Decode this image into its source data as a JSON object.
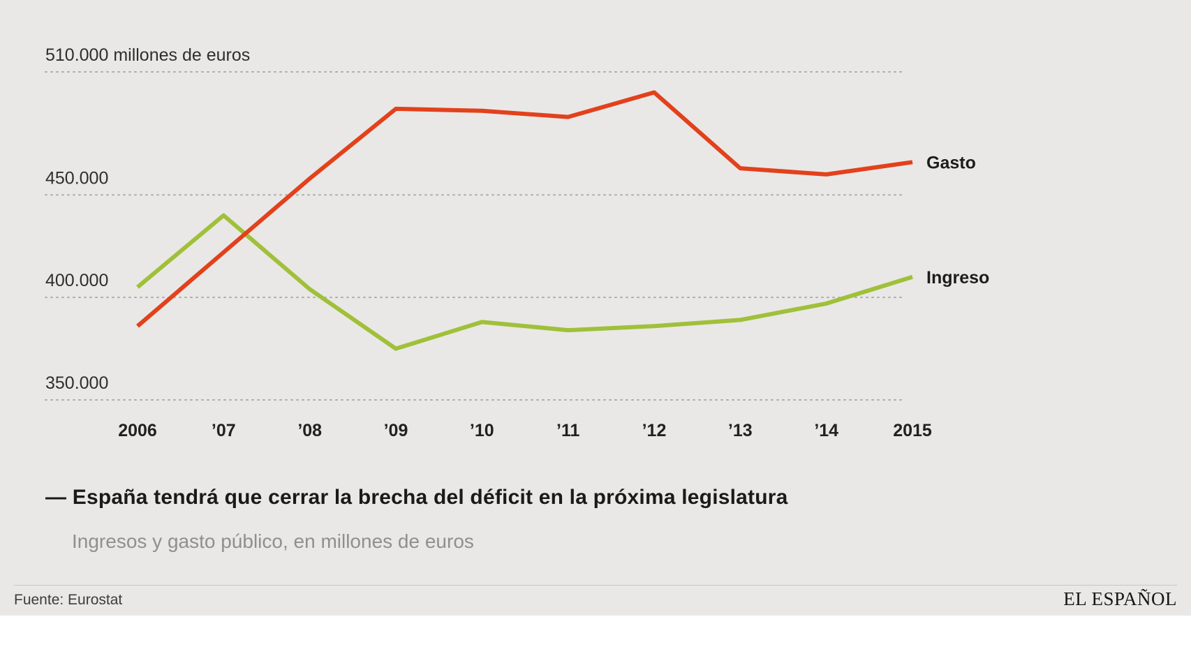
{
  "page": {
    "panel_bg": "#e9e8e6",
    "grid_color": "#acacaa"
  },
  "chart_data": {
    "type": "line",
    "title": "— España tendrá que cerrar la brecha del déficit en la próxima legislatura",
    "subtitle": "Ingresos y gasto público, en millones de euros",
    "source": "Fuente: Eurostat",
    "brand": "EL ESPAÑOL",
    "x_labels": [
      "2006",
      "’07",
      "’08",
      "’09",
      "’10",
      "’11",
      "’12",
      "’13",
      "’14",
      "2015"
    ],
    "gridlines": [
      {
        "value": 510000,
        "label": "510.000 millones de euros"
      },
      {
        "value": 450000,
        "label": "450.000"
      },
      {
        "value": 400000,
        "label": "400.000"
      },
      {
        "value": 350000,
        "label": "350.000"
      }
    ],
    "ylim": [
      340000,
      520000
    ],
    "legend_position": "right-of-line-ends",
    "grid": "dotted-horizontal",
    "series": [
      {
        "name": "Gasto",
        "color": "#e2411c",
        "values": [
          386000,
          422000,
          458000,
          492000,
          491000,
          488000,
          500000,
          463000,
          460000,
          466000
        ]
      },
      {
        "name": "Ingreso",
        "color": "#a0c03a",
        "values": [
          405000,
          440000,
          404000,
          375000,
          388000,
          384000,
          386000,
          389000,
          397000,
          410000
        ]
      }
    ]
  }
}
